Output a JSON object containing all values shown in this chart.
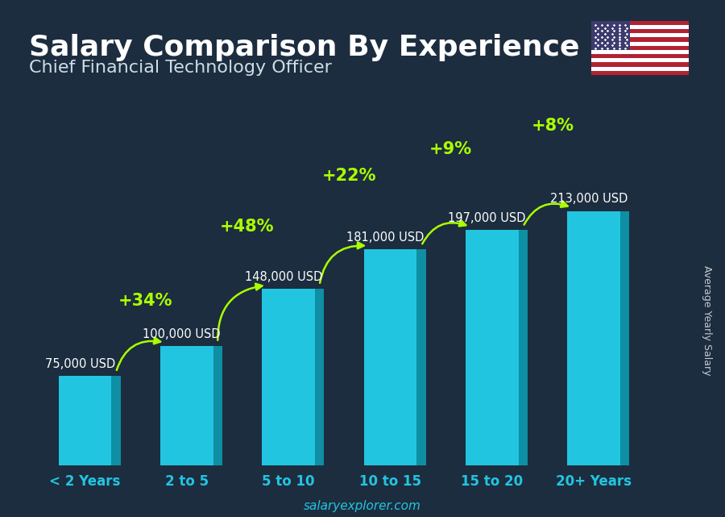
{
  "title": "Salary Comparison By Experience",
  "subtitle": "Chief Financial Technology Officer",
  "categories": [
    "< 2 Years",
    "2 to 5",
    "5 to 10",
    "10 to 15",
    "15 to 20",
    "20+ Years"
  ],
  "values": [
    75000,
    100000,
    148000,
    181000,
    197000,
    213000
  ],
  "salary_labels": [
    "75,000 USD",
    "100,000 USD",
    "148,000 USD",
    "181,000 USD",
    "197,000 USD",
    "213,000 USD"
  ],
  "pct_changes": [
    null,
    "+34%",
    "+48%",
    "+22%",
    "+9%",
    "+8%"
  ],
  "bar_color_face": "#22c5e0",
  "bar_color_right": "#0e8fa3",
  "bar_color_top": "#55ddef",
  "bg_color": "#1c2d3f",
  "title_color": "#ffffff",
  "subtitle_color": "#d0dde8",
  "label_color": "#ffffff",
  "pct_color": "#aaff00",
  "tick_color": "#22c5e0",
  "ylabel": "Average Yearly Salary",
  "footer": "salaryexplorer.com",
  "ylim_max": 260000,
  "title_fontsize": 26,
  "subtitle_fontsize": 16,
  "label_fontsize": 10.5,
  "pct_fontsize": 15,
  "cat_fontsize": 12
}
